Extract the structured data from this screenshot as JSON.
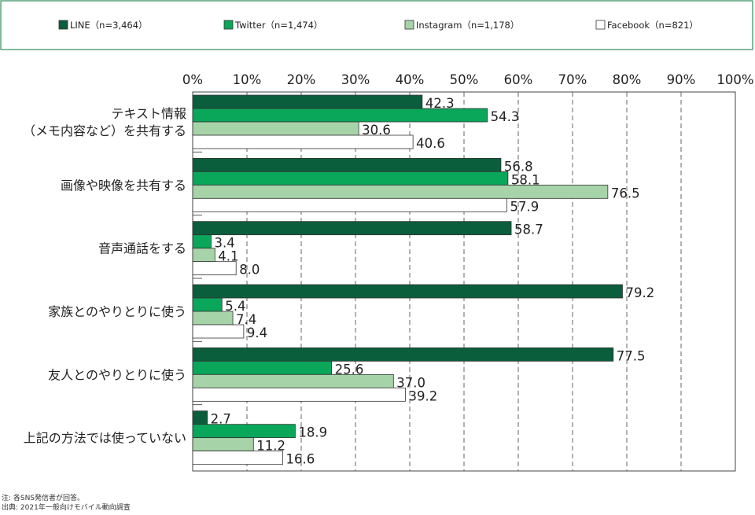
{
  "chart_data": {
    "type": "bar",
    "orientation": "horizontal",
    "categories": [
      "テキスト情報\n（メモ内容など）を共有する",
      "画像や映像を共有する",
      "音声通話をする",
      "家族とのやりとりに使う",
      "友人とのやりとりに使う",
      "上記の方法では使っていない"
    ],
    "series": [
      {
        "name": "LINE（n=3,464）",
        "color": "#0b5e3c",
        "values": [
          42.3,
          56.8,
          58.7,
          79.2,
          77.5,
          2.7
        ]
      },
      {
        "name": "Twitter（n=1,474）",
        "color": "#0aa65a",
        "values": [
          54.3,
          58.1,
          3.4,
          5.4,
          25.6,
          18.9
        ]
      },
      {
        "name": "Instagram（n=1,178）",
        "color": "#a6d4a8",
        "values": [
          30.6,
          76.5,
          4.1,
          7.4,
          37.0,
          11.2
        ]
      },
      {
        "name": "Facebook（n=821）",
        "color": "#ffffff",
        "values": [
          40.6,
          57.9,
          8.0,
          9.4,
          39.2,
          16.6
        ]
      }
    ],
    "x_ticks": [
      "0%",
      "10%",
      "20%",
      "30%",
      "40%",
      "50%",
      "60%",
      "70%",
      "80%",
      "90%",
      "100%"
    ],
    "xlim": [
      0,
      100
    ],
    "grid": "vertical dashed",
    "legend": "top, boxed"
  },
  "notes": {
    "note": "注: 各SNS発信者が回答。",
    "source": "出典: 2021年一般向けモバイル動向調査"
  }
}
